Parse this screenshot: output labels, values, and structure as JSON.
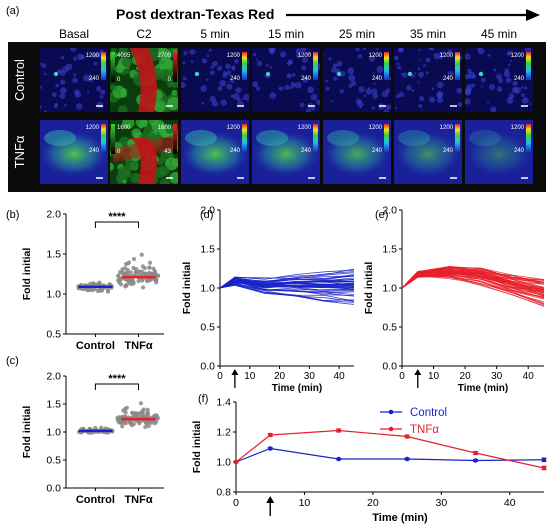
{
  "header": {
    "title": "Post dextran-Texas Red"
  },
  "panel_a": {
    "label": "(a)",
    "columns": [
      "Basal",
      "C2",
      "5 min",
      "15 min",
      "25 min",
      "35 min",
      "45 min"
    ],
    "rows": [
      "Control",
      "TNFα"
    ],
    "colorbars": {
      "control": {
        "default": [
          "1200",
          "240"
        ],
        "c2_left": [
          "4095",
          "0"
        ],
        "c2_right": [
          "2700",
          "0"
        ]
      },
      "tnfa": {
        "default": [
          "1200",
          "240"
        ],
        "c2_left": [
          "1600",
          "0"
        ],
        "c2_right": [
          "1600",
          "43"
        ]
      }
    },
    "colors": {
      "frame": "#0b0b0b",
      "tile_bg": "#0a0a52",
      "dye_red": "#c0141a",
      "dye_green": "#2ea836"
    }
  },
  "chart_data": [
    {
      "id": "b",
      "label": "(b)",
      "type": "scatter",
      "ylabel": "Fold initial",
      "ylim": [
        0.5,
        2.0
      ],
      "yticks": [
        "0.5",
        "1.0",
        "1.5",
        "2.0"
      ],
      "categories": [
        "Control",
        "TNFα"
      ],
      "means": [
        1.09,
        1.21
      ],
      "significance": "****",
      "colors": [
        "#1a23c8",
        "#e8202a"
      ]
    },
    {
      "id": "c",
      "label": "(c)",
      "type": "scatter",
      "ylabel": "Fold initial",
      "ylim": [
        0.0,
        2.0
      ],
      "yticks": [
        "0.0",
        "0.5",
        "1.0",
        "1.5",
        "2.0"
      ],
      "categories": [
        "Control",
        "TNFα"
      ],
      "means": [
        1.02,
        1.23
      ],
      "significance": "****",
      "colors": [
        "#1a23c8",
        "#e8202a"
      ]
    },
    {
      "id": "d",
      "label": "(d)",
      "type": "line",
      "xlabel": "Time (min)",
      "ylabel": "Fold initial",
      "xlim": [
        0,
        45
      ],
      "ylim": [
        0,
        2.0
      ],
      "xticks": [
        "0",
        "10",
        "20",
        "30",
        "40"
      ],
      "yticks": [
        "0.0",
        "0.5",
        "1.0",
        "1.5",
        "2.0"
      ],
      "x": [
        0,
        5,
        15,
        25,
        35,
        45
      ],
      "mean": [
        1.0,
        1.09,
        1.02,
        1.02,
        1.01,
        1.01
      ],
      "color": "#1a23c8",
      "arrow_x": 5
    },
    {
      "id": "e",
      "label": "(e)",
      "type": "line",
      "xlabel": "Time (min)",
      "ylabel": "Fold initial",
      "xlim": [
        0,
        45
      ],
      "ylim": [
        0,
        2.0
      ],
      "xticks": [
        "0",
        "10",
        "20",
        "30",
        "40"
      ],
      "yticks": [
        "0.0",
        "0.5",
        "1.0",
        "1.5",
        "2.0"
      ],
      "x": [
        0,
        5,
        15,
        25,
        35,
        45
      ],
      "mean": [
        1.0,
        1.18,
        1.21,
        1.17,
        1.06,
        0.96
      ],
      "color": "#e8202a",
      "arrow_x": 5
    },
    {
      "id": "f",
      "label": "(f)",
      "type": "line",
      "xlabel": "Time (min)",
      "ylabel": "Fold initial",
      "xlim": [
        0,
        45
      ],
      "ylim": [
        0.8,
        1.4
      ],
      "xticks": [
        "0",
        "10",
        "20",
        "30",
        "40"
      ],
      "yticks": [
        "0.8",
        "1.0",
        "1.2",
        "1.4"
      ],
      "x": [
        0,
        5,
        15,
        25,
        35,
        45
      ],
      "legend": "top-right",
      "arrow_x": 5,
      "series": [
        {
          "name": "Control",
          "color": "#1a23c8",
          "values": [
            1.0,
            1.09,
            1.02,
            1.02,
            1.01,
            1.015
          ],
          "err": [
            0,
            0.006,
            0.005,
            0.006,
            0.006,
            0.012
          ]
        },
        {
          "name": "TNFα",
          "color": "#e8202a",
          "values": [
            1.0,
            1.18,
            1.21,
            1.17,
            1.06,
            0.96
          ],
          "err": [
            0,
            0.01,
            0.01,
            0.01,
            0.01,
            0.012
          ]
        }
      ]
    }
  ]
}
